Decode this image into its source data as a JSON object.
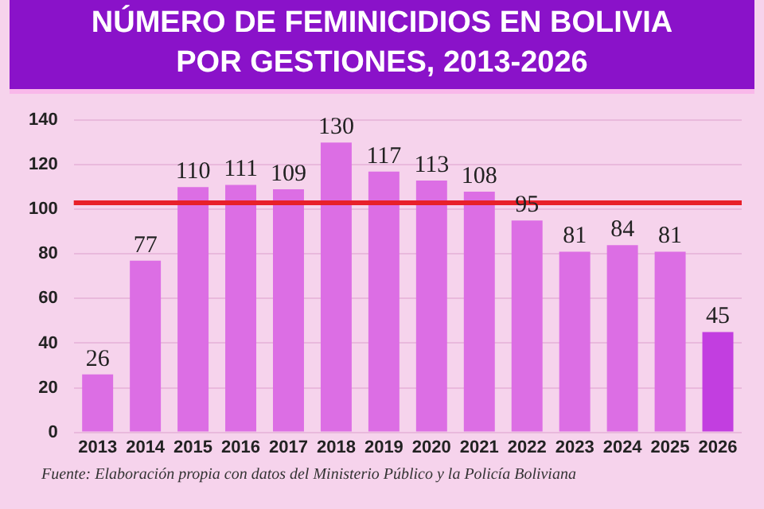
{
  "chart_data": {
    "type": "bar",
    "title": "NÚMERO DE FEMINICIDIOS EN BOLIVIA\nPOR GESTIONES, 2013-2026",
    "categories": [
      "2013",
      "2014",
      "2015",
      "2016",
      "2017",
      "2018",
      "2019",
      "2020",
      "2021",
      "2022",
      "2023",
      "2024",
      "2025",
      "2026"
    ],
    "values": [
      26,
      77,
      110,
      111,
      109,
      130,
      117,
      113,
      108,
      95,
      81,
      84,
      81,
      45
    ],
    "colors": [
      "#dc6ee4",
      "#dc6ee4",
      "#dc6ee4",
      "#dc6ee4",
      "#dc6ee4",
      "#dc6ee4",
      "#dc6ee4",
      "#dc6ee4",
      "#dc6ee4",
      "#dc6ee4",
      "#dc6ee4",
      "#dc6ee4",
      "#dc6ee4",
      "#c23ee0"
    ],
    "ylim": [
      0,
      140
    ],
    "yticks": [
      0,
      20,
      40,
      60,
      80,
      100,
      120,
      140
    ],
    "grid": "y",
    "data_labels": true,
    "ref_lines": [
      {
        "axis": "y",
        "value": 103,
        "label": null,
        "color": "#e8202a"
      }
    ],
    "annotations": [
      "Fuente: Elaboración propia con datos del Ministerio Público y la Policía Boliviana"
    ]
  }
}
